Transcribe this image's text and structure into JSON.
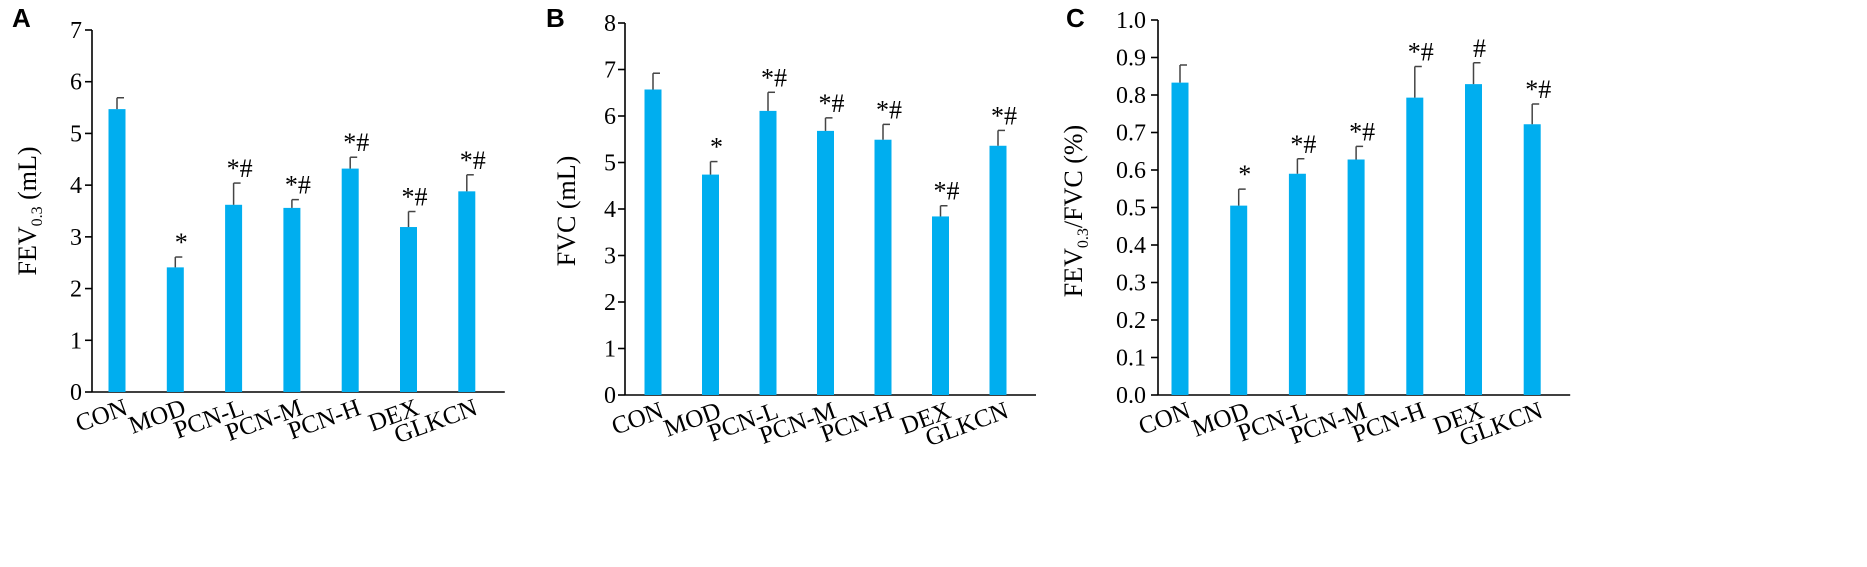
{
  "colors": {
    "bar": "#00aeef",
    "axis": "#000000",
    "error": "#444444"
  },
  "chart_data": [
    {
      "type": "bar",
      "panel_label": "A",
      "ylabel_main": "FEV",
      "ylabel_sub": "0.3",
      "ylabel_after": " (mL)",
      "categories": [
        "CON",
        "MOD",
        "PCN-L",
        "PCN-M",
        "PCN-H",
        "DEX",
        "GLKCN"
      ],
      "values": [
        5.47,
        2.41,
        3.62,
        3.56,
        4.32,
        3.19,
        3.88
      ],
      "errors": [
        0.22,
        0.2,
        0.42,
        0.16,
        0.22,
        0.3,
        0.32
      ],
      "significance": [
        "",
        "*",
        "*#",
        "*#",
        "*#",
        "*#",
        "*#"
      ],
      "ylim": [
        0,
        7
      ],
      "yticks": [
        "0",
        "1",
        "2",
        "3",
        "4",
        "5",
        "6",
        "7"
      ]
    },
    {
      "type": "bar",
      "panel_label": "B",
      "ylabel_main": "FVC (mL)",
      "ylabel_sub": "",
      "ylabel_after": "",
      "categories": [
        "CON",
        "MOD",
        "PCN-L",
        "PCN-M",
        "PCN-H",
        "DEX",
        "GLKCN"
      ],
      "values": [
        6.57,
        4.74,
        6.11,
        5.68,
        5.49,
        3.84,
        5.36
      ],
      "errors": [
        0.35,
        0.28,
        0.4,
        0.28,
        0.33,
        0.23,
        0.33
      ],
      "significance": [
        "",
        "*",
        "*#",
        "*#",
        "*#",
        "*#",
        "*#"
      ],
      "ylim": [
        0,
        8
      ],
      "yticks": [
        "0",
        "1",
        "2",
        "3",
        "4",
        "5",
        "6",
        "7",
        "8"
      ]
    },
    {
      "type": "bar",
      "panel_label": "C",
      "ylabel_main": "FEV",
      "ylabel_sub": "0.3",
      "ylabel_after": "/FVC (%)",
      "categories": [
        "CON",
        "MOD",
        "PCN-L",
        "PCN-M",
        "PCN-H",
        "DEX",
        "GLKCN"
      ],
      "values": [
        0.833,
        0.505,
        0.59,
        0.628,
        0.793,
        0.829,
        0.722
      ],
      "errors": [
        0.047,
        0.044,
        0.04,
        0.035,
        0.083,
        0.057,
        0.054
      ],
      "significance": [
        "",
        "*",
        "*#",
        "*#",
        "*#",
        "#",
        "*#"
      ],
      "ylim": [
        0,
        1.0
      ],
      "yticks": [
        "0.0",
        "0.1",
        "0.2",
        "0.3",
        "0.4",
        "0.5",
        "0.6",
        "0.7",
        "0.8",
        "0.9",
        "1.0"
      ]
    }
  ]
}
